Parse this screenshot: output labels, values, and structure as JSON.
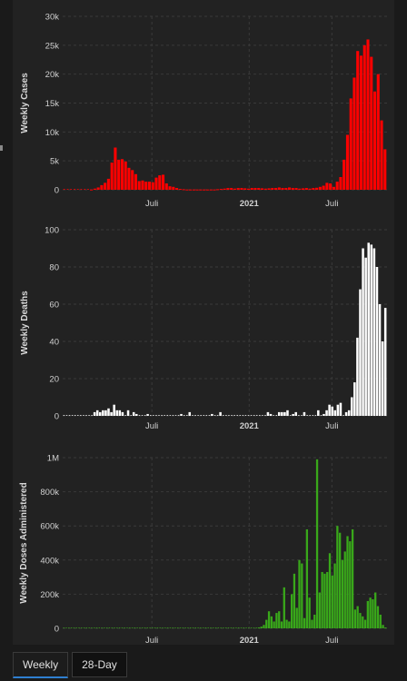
{
  "tabs": [
    {
      "label": "Weekly",
      "active": true
    },
    {
      "label": "28-Day",
      "active": false
    }
  ],
  "charts": [
    {
      "type": "bar",
      "ylabel": "Weekly Cases",
      "color": "#ff0000",
      "ylim": [
        0,
        30000
      ],
      "ytick_values": [
        0,
        5000,
        10000,
        15000,
        20000,
        25000,
        30000
      ],
      "ytick_labels": [
        "0",
        "5k",
        "10k",
        "15k",
        "20k",
        "25k",
        "30k"
      ],
      "xtick_labels": [
        "Juli",
        "2021",
        "Juli"
      ],
      "values": [
        0,
        0,
        0,
        0,
        0,
        0,
        0,
        0,
        50,
        200,
        400,
        800,
        1200,
        1900,
        4700,
        7300,
        5200,
        5300,
        4900,
        3800,
        3400,
        2700,
        1500,
        1600,
        1400,
        1400,
        1300,
        2100,
        2500,
        2600,
        1100,
        600,
        500,
        300,
        150,
        100,
        50,
        50,
        50,
        50,
        50,
        50,
        50,
        50,
        50,
        100,
        150,
        200,
        300,
        300,
        200,
        300,
        300,
        250,
        200,
        300,
        300,
        300,
        250,
        200,
        250,
        300,
        300,
        400,
        300,
        300,
        400,
        300,
        300,
        200,
        250,
        300,
        200,
        300,
        350,
        500,
        700,
        1200,
        1100,
        500,
        1400,
        2200,
        5200,
        9500,
        15800,
        19400,
        24000,
        23200,
        25000,
        26000,
        23000,
        17000,
        20000,
        12000,
        7000
      ]
    },
    {
      "type": "bar",
      "ylabel": "Weekly Deaths",
      "color": "#ffffff",
      "ylim": [
        0,
        100
      ],
      "ytick_values": [
        0,
        20,
        40,
        60,
        80,
        100
      ],
      "ytick_labels": [
        "0",
        "20",
        "40",
        "60",
        "80",
        "100"
      ],
      "xtick_labels": [
        "Juli",
        "2021",
        "Juli"
      ],
      "values": [
        0,
        0,
        0,
        0,
        0,
        0,
        0,
        0,
        0,
        0,
        0,
        2,
        3,
        2,
        3,
        3,
        4,
        2,
        6,
        3,
        3,
        2,
        0,
        3,
        0,
        2,
        1,
        0,
        0,
        0,
        1,
        0,
        0,
        0,
        0,
        0,
        0,
        0,
        0,
        0,
        0,
        0,
        1,
        0,
        0,
        2,
        0,
        0,
        0,
        0,
        0,
        0,
        0,
        1,
        0,
        0,
        2,
        0,
        0,
        0,
        0,
        0,
        0,
        0,
        0,
        0,
        0,
        0,
        0,
        0,
        0,
        0,
        0,
        2,
        1,
        0,
        0,
        2,
        2,
        2,
        3,
        0,
        1,
        2,
        0,
        0,
        2,
        0,
        0,
        0,
        0,
        3,
        0,
        1,
        3,
        6,
        5,
        3,
        6,
        7,
        0,
        2,
        3,
        10,
        18,
        42,
        68,
        90,
        85,
        93,
        92,
        90,
        80,
        60,
        40,
        58
      ]
    },
    {
      "type": "bar",
      "ylabel": "Weekly Doses Administered",
      "color": "#39a81a",
      "ylim": [
        0,
        1000000
      ],
      "ytick_values": [
        0,
        200000,
        400000,
        600000,
        800000,
        1000000
      ],
      "ytick_labels": [
        "0",
        "200k",
        "400k",
        "600k",
        "800k",
        "1M"
      ],
      "xtick_labels": [
        "Juli",
        "2021",
        "Juli"
      ],
      "values": [
        0,
        0,
        0,
        0,
        0,
        0,
        0,
        0,
        0,
        0,
        0,
        0,
        0,
        0,
        0,
        0,
        0,
        0,
        0,
        0,
        0,
        0,
        0,
        0,
        0,
        0,
        0,
        0,
        0,
        0,
        0,
        0,
        0,
        0,
        0,
        0,
        0,
        0,
        0,
        0,
        0,
        0,
        0,
        0,
        0,
        0,
        0,
        0,
        0,
        0,
        0,
        0,
        0,
        0,
        0,
        0,
        0,
        0,
        0,
        0,
        0,
        0,
        0,
        0,
        0,
        0,
        0,
        0,
        0,
        0,
        0,
        0,
        0,
        0,
        0,
        0,
        0,
        5000,
        10000,
        20000,
        50000,
        100000,
        70000,
        40000,
        90000,
        100000,
        40000,
        240000,
        50000,
        40000,
        200000,
        320000,
        120000,
        400000,
        380000,
        60000,
        580000,
        180000,
        50000,
        80000,
        990000,
        210000,
        330000,
        320000,
        330000,
        440000,
        310000,
        380000,
        600000,
        560000,
        400000,
        450000,
        540000,
        510000,
        580000,
        110000,
        130000,
        90000,
        70000,
        50000,
        160000,
        180000,
        170000,
        210000,
        130000,
        80000,
        20000,
        5000
      ]
    }
  ]
}
